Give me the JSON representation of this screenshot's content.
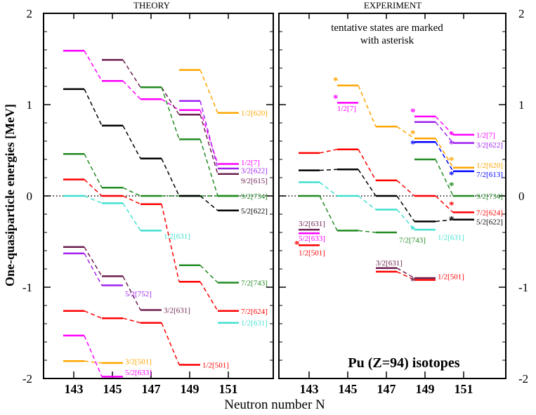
{
  "chart_data": {
    "type": "line",
    "panel_titles": [
      "THEORY",
      "EXPERIMENT"
    ],
    "xlabel": "Neutron number N",
    "ylabel": "One-quasiparticle energies [MeV]",
    "x_ticks": [
      "143",
      "145",
      "147",
      "149",
      "151"
    ],
    "y_ticks": [
      "2",
      "1",
      "0",
      "-1",
      "-2"
    ],
    "ylim": [
      -2,
      2
    ],
    "zero_line": "dotted",
    "title_main": "Pu (Z=94) isotopes",
    "note_line1": "tentative states are marked",
    "note_line2": "with asterisk",
    "theory_series": [
      {
        "name": "1/2[620]",
        "color": "#FFA500",
        "points": [
          [
            149,
            1.38
          ],
          [
            151,
            0.91
          ]
        ]
      },
      {
        "name": "1/2[7]",
        "color": "#FF00FF",
        "points": [
          [
            143,
            1.59
          ],
          [
            145,
            1.26
          ],
          [
            147,
            1.06
          ],
          [
            149,
            0.94
          ],
          [
            151,
            0.35
          ]
        ]
      },
      {
        "name": "3/2[622]",
        "color": "#A020F0",
        "points": [
          [
            149,
            1.04
          ],
          [
            151,
            0.3
          ]
        ]
      },
      {
        "name": "9/2[615]",
        "color": "#6B1F4F",
        "points": [
          [
            145,
            1.49
          ],
          [
            147,
            1.19
          ],
          [
            149,
            0.89
          ],
          [
            151,
            0.24
          ]
        ]
      },
      {
        "name": "9/2[734]",
        "color": "#228B22",
        "points": [
          [
            143,
            0.46
          ],
          [
            145,
            0.09
          ],
          [
            147,
            0.0
          ],
          [
            149,
            0.0
          ],
          [
            151,
            0.0
          ]
        ]
      },
      {
        "name": "",
        "color": "#228B22",
        "points": [
          [
            147,
            1.19
          ],
          [
            149,
            0.62
          ],
          [
            151,
            0.0
          ]
        ]
      },
      {
        "name": "5/2[622]",
        "color": "#000000",
        "points": [
          [
            143,
            1.17
          ],
          [
            145,
            0.77
          ],
          [
            147,
            0.41
          ],
          [
            149,
            0.0
          ],
          [
            151,
            -0.16
          ]
        ]
      },
      {
        "name": "1/2[631]",
        "color": "#40E0D0",
        "points": [
          [
            143,
            0.0
          ],
          [
            145,
            -0.08
          ],
          [
            147,
            -0.38
          ]
        ]
      },
      {
        "name": "1/2[631]",
        "color": "#40E0D0",
        "points": [
          [
            151,
            -1.39
          ]
        ]
      },
      {
        "name": "5/2[752]",
        "color": "#A020F0",
        "points": [
          [
            143,
            -0.63
          ],
          [
            145,
            -0.98
          ]
        ]
      },
      {
        "name": "3/2[631]",
        "color": "#6B1F4F",
        "points": [
          [
            143,
            -0.56
          ],
          [
            145,
            -0.88
          ],
          [
            147,
            -1.25
          ]
        ]
      },
      {
        "name": "7/2[743]",
        "color": "#228B22",
        "points": [
          [
            149,
            -0.76
          ],
          [
            151,
            -0.95
          ]
        ]
      },
      {
        "name": "7/2[624]",
        "color": "#FF0000",
        "points": [
          [
            143,
            0.18
          ],
          [
            145,
            0.0
          ],
          [
            147,
            -0.09
          ],
          [
            149,
            -0.94
          ],
          [
            151,
            -1.26
          ]
        ]
      },
      {
        "name": "1/2[501]",
        "color": "#FF0000",
        "points": [
          [
            143,
            -1.26
          ],
          [
            145,
            -1.34
          ],
          [
            147,
            -1.39
          ],
          [
            149,
            -1.85
          ]
        ]
      },
      {
        "name": "3/2[501]",
        "color": "#FFA500",
        "points": [
          [
            143,
            -1.81
          ],
          [
            145,
            -1.83
          ]
        ]
      },
      {
        "name": "5/2[633]",
        "color": "#FF00FF",
        "points": [
          [
            143,
            -1.53
          ],
          [
            145,
            -1.98
          ]
        ]
      }
    ],
    "theory_labels": [
      {
        "text": "1/2[620]",
        "color": "#FFA500",
        "x": 151,
        "y": 0.91
      },
      {
        "text": "1/2[7]",
        "color": "#FF00FF",
        "x": 151,
        "y": 0.37
      },
      {
        "text": "3/2[622]",
        "color": "#A020F0",
        "x": 151,
        "y": 0.28
      },
      {
        "text": "9/2[615]",
        "color": "#6B1F4F",
        "x": 151,
        "y": 0.17
      },
      {
        "text": "9/2[734]",
        "color": "#228B22",
        "x": 151,
        "y": 0.0
      },
      {
        "text": "5/2[622]",
        "color": "#000000",
        "x": 151,
        "y": -0.16
      },
      {
        "text": "1/2[631]",
        "color": "#40E0D0",
        "x": 147,
        "y": -0.44
      },
      {
        "text": "5/2[752]",
        "color": "#A020F0",
        "x": 145,
        "y": -1.07
      },
      {
        "text": "3/2[631]",
        "color": "#6B1F4F",
        "x": 147,
        "y": -1.25
      },
      {
        "text": "7/2[743]",
        "color": "#228B22",
        "x": 151,
        "y": -0.95
      },
      {
        "text": "7/2[624]",
        "color": "#FF0000",
        "x": 151,
        "y": -1.26
      },
      {
        "text": "1/2[631]",
        "color": "#40E0D0",
        "x": 151,
        "y": -1.39
      },
      {
        "text": "1/2[501]",
        "color": "#FF0000",
        "x": 149,
        "y": -1.85
      },
      {
        "text": "3/2[501]",
        "color": "#FFA500",
        "x": 145,
        "y": -1.81
      },
      {
        "text": "5/2[633]",
        "color": "#FF00FF",
        "x": 145,
        "y": -1.93
      }
    ],
    "experiment_series": [
      {
        "name": "1/2[620]",
        "color": "#FFA500",
        "points": [
          [
            145,
            1.21
          ],
          [
            147,
            0.76
          ],
          [
            149,
            0.63
          ],
          [
            151,
            0.31
          ]
        ]
      },
      {
        "name": "1/2[7]",
        "color": "#FF00FF",
        "points": [
          [
            145,
            1.02
          ]
        ]
      },
      {
        "name": "1/2[7]",
        "color": "#FF00FF",
        "points": [
          [
            149,
            0.87
          ],
          [
            151,
            0.67
          ]
        ]
      },
      {
        "name": "3/2[622]",
        "color": "#A020F0",
        "points": [
          [
            149,
            0.81
          ],
          [
            151,
            0.58
          ]
        ]
      },
      {
        "name": "7/2[613]",
        "color": "#0000FF",
        "points": [
          [
            149,
            0.59
          ],
          [
            151,
            0.27
          ]
        ]
      },
      {
        "name": "9/2[734]",
        "color": "#228B22",
        "points": [
          [
            143,
            0.0
          ],
          [
            145,
            -0.38
          ],
          [
            147,
            -0.4
          ]
        ]
      },
      {
        "name": "",
        "color": "#228B22",
        "points": [
          [
            149,
            0.4
          ],
          [
            151,
            0.0
          ]
        ]
      },
      {
        "name": "7/2[624]",
        "color": "#FF0000",
        "points": [
          [
            143,
            0.47
          ],
          [
            145,
            0.51
          ],
          [
            147,
            0.17
          ],
          [
            149,
            0.0
          ],
          [
            151,
            -0.18
          ]
        ]
      },
      {
        "name": "5/2[622]",
        "color": "#000000",
        "points": [
          [
            143,
            0.28
          ],
          [
            145,
            0.29
          ],
          [
            147,
            0.0
          ],
          [
            149,
            -0.28
          ],
          [
            151,
            -0.26
          ]
        ]
      },
      {
        "name": "1/2[631]",
        "color": "#40E0D0",
        "points": [
          [
            143,
            0.15
          ],
          [
            145,
            0.0
          ],
          [
            147,
            -0.15
          ],
          [
            149,
            -0.37
          ]
        ]
      },
      {
        "name": "3/2[631]",
        "color": "#6B1F4F",
        "points": [
          [
            143,
            -0.37
          ]
        ]
      },
      {
        "name": "5/2[633]",
        "color": "#FF00FF",
        "points": [
          [
            143,
            -0.41
          ]
        ]
      },
      {
        "name": "1/2[501]",
        "color": "#FF0000",
        "points": [
          [
            143,
            -0.54
          ]
        ]
      },
      {
        "name": "3/2[631]",
        "color": "#6B1F4F",
        "points": [
          [
            147,
            -0.79
          ],
          [
            149,
            -0.9
          ]
        ]
      },
      {
        "name": "1/2[501]",
        "color": "#FF0000",
        "points": [
          [
            147,
            -0.83
          ],
          [
            149,
            -0.92
          ]
        ]
      }
    ],
    "experiment_labels": [
      {
        "text": "1/2[7]",
        "color": "#FF00FF",
        "x": 145,
        "y": 0.96,
        "anchor": "at"
      },
      {
        "text": "1/2[7]",
        "color": "#FF00FF",
        "x": 151,
        "y": 0.67
      },
      {
        "text": "3/2[622]",
        "color": "#A020F0",
        "x": 151,
        "y": 0.56
      },
      {
        "text": "1/2[620]",
        "color": "#FFA500",
        "x": 151,
        "y": 0.34
      },
      {
        "text": "7/2[613]",
        "color": "#0000FF",
        "x": 151,
        "y": 0.24
      },
      {
        "text": "9/2[734]",
        "color": "#228B22",
        "x": 151,
        "y": 0.0
      },
      {
        "text": "7/2[624]",
        "color": "#FF0000",
        "x": 151,
        "y": -0.18
      },
      {
        "text": "5/2[622]",
        "color": "#000000",
        "x": 151,
        "y": -0.28
      },
      {
        "text": "1/2[631]",
        "color": "#40E0D0",
        "x": 149,
        "y": -0.45
      },
      {
        "text": "7/2[743]",
        "color": "#228B22",
        "x": 147,
        "y": -0.48
      },
      {
        "text": "3/2[631]",
        "color": "#6B1F4F",
        "x": 143,
        "y": -0.3,
        "anchor": "at"
      },
      {
        "text": "5/2[633]",
        "color": "#FF00FF",
        "x": 143,
        "y": -0.46,
        "anchor": "at"
      },
      {
        "text": "1/2[501]",
        "color": "#FF0000",
        "x": 143,
        "y": -0.62,
        "anchor": "at"
      },
      {
        "text": "3/2[631]",
        "color": "#6B1F4F",
        "x": 147,
        "y": -0.73,
        "anchor": "at"
      },
      {
        "text": "1/2[501]",
        "color": "#FF0000",
        "x": 149,
        "y": -0.88
      }
    ],
    "asterisks": [
      {
        "x": 145,
        "y": 1.21,
        "color": "#FFA500"
      },
      {
        "x": 145,
        "y": 1.02,
        "color": "#FF00FF"
      },
      {
        "x": 149,
        "y": 0.87,
        "color": "#FF00FF"
      },
      {
        "x": 149,
        "y": 0.63,
        "color": "#FFA500"
      },
      {
        "x": 149,
        "y": 0.52,
        "color": "#0000FF"
      },
      {
        "x": 151,
        "y": 0.62,
        "color": "#FF00FF"
      },
      {
        "x": 151,
        "y": 0.52,
        "color": "#A020F0"
      },
      {
        "x": 151,
        "y": 0.34,
        "color": "#FFA500"
      },
      {
        "x": 151,
        "y": 0.18,
        "color": "#0000FF"
      },
      {
        "x": 151,
        "y": 0.06,
        "color": "#228B22"
      },
      {
        "x": 151,
        "y": -0.15,
        "color": "#FF0000"
      },
      {
        "x": 151,
        "y": -0.31,
        "color": "#000000"
      },
      {
        "x": 149,
        "y": -0.42,
        "color": "#40E0D0"
      },
      {
        "x": 143,
        "y": -0.58,
        "color": "#FF0000"
      },
      {
        "x": 149,
        "y": -0.98,
        "color": "#6B1F4F"
      }
    ]
  }
}
